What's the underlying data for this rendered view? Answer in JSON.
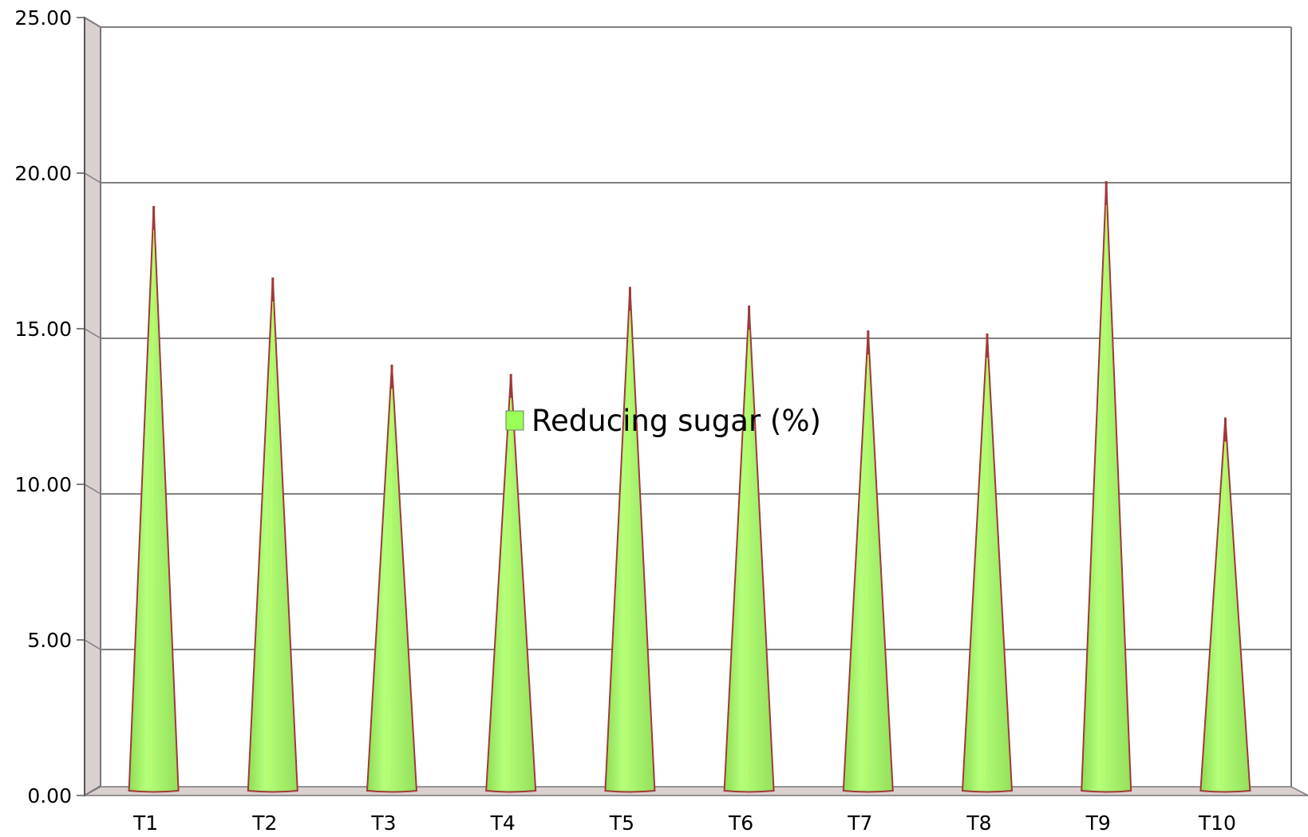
{
  "chart_data": {
    "type": "bar",
    "bar_shape": "cone",
    "title": "",
    "xlabel": "",
    "ylabel": "",
    "categories": [
      "T1",
      "T2",
      "T3",
      "T4",
      "T5",
      "T6",
      "T7",
      "T8",
      "T9",
      "T10"
    ],
    "y_tick_labels": [
      "0.00",
      "5.00",
      "10.00",
      "15.00",
      "20.00",
      "25.00"
    ],
    "series": [
      {
        "name": "Reducing sugar (%)",
        "values": [
          19.2,
          16.9,
          14.1,
          13.8,
          16.6,
          16.0,
          15.2,
          15.1,
          20.0,
          12.4
        ]
      }
    ],
    "ylim": [
      0,
      25
    ],
    "grid": true,
    "legend_position": "center",
    "colors": {
      "bar_fill": "#adfa70",
      "bar_outline": "#a0393a",
      "legend_swatch": "#99ff55",
      "grid": "#808080",
      "wall": "#d9d0cf"
    }
  }
}
